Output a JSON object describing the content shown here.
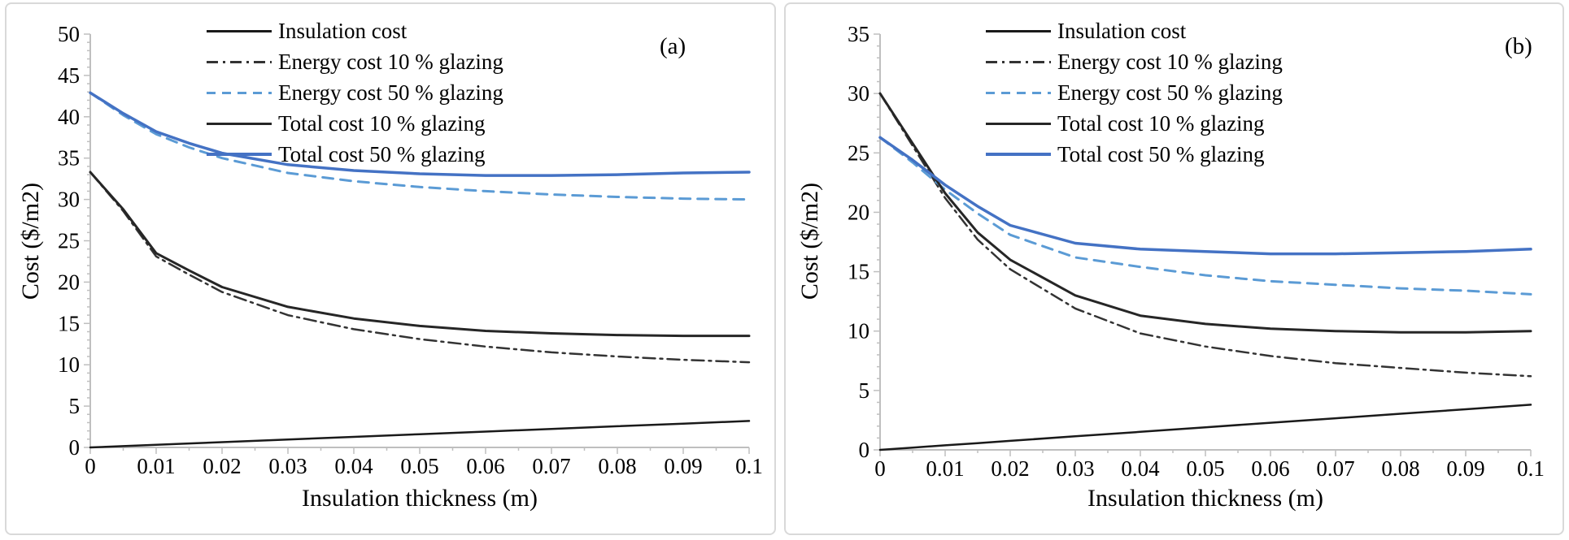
{
  "figure": {
    "background": "#ffffff",
    "panel_border_color": "#d9d9d9",
    "axis_color": "#bfbfbf",
    "accent_blue_solid": "#4472C4",
    "accent_blue_dashed": "#5B9BD5",
    "line_black": "#1a1a1a",
    "line_dark": "#262626",
    "line_dashdot_gray": "#333333"
  },
  "chart_data": [
    {
      "type": "line",
      "panel_label": "(a)",
      "xlabel": "Insulation thickness (m)",
      "ylabel": "Cost ($/m2)",
      "xlim": [
        0,
        0.1
      ],
      "ylim": [
        0,
        50
      ],
      "grid": false,
      "legend_position": "top-center",
      "x_tick_values": [
        0,
        0.01,
        0.02,
        0.03,
        0.04,
        0.05,
        0.06,
        0.07,
        0.08,
        0.09,
        0.1
      ],
      "x_tick_labels": [
        "0",
        "0.01",
        "0.02",
        "0.03",
        "0.04",
        "0.05",
        "0.06",
        "0.07",
        "0.08",
        "0.09",
        "0.1"
      ],
      "x_minor": 0.005,
      "y_tick_values": [
        0,
        5,
        10,
        15,
        20,
        25,
        30,
        35,
        40,
        45,
        50
      ],
      "y_tick_labels": [
        "0",
        "5",
        "10",
        "15",
        "20",
        "25",
        "30",
        "35",
        "40",
        "45",
        "50"
      ],
      "y_minor": 1,
      "x": [
        0,
        0.005,
        0.01,
        0.015,
        0.02,
        0.03,
        0.04,
        0.05,
        0.06,
        0.07,
        0.08,
        0.09,
        0.1
      ],
      "series": [
        {
          "name": "Insulation cost",
          "style": "solid",
          "color": "#1a1a1a",
          "width": 2.5,
          "values": [
            0,
            0.16,
            0.32,
            0.48,
            0.64,
            0.96,
            1.28,
            1.6,
            1.92,
            2.24,
            2.56,
            2.88,
            3.2
          ]
        },
        {
          "name": "Energy cost 10 % glazing",
          "style": "dashdot",
          "color": "#333333",
          "width": 2.5,
          "values": [
            33.3,
            28.6,
            23.1,
            20.9,
            18.8,
            16.0,
            14.3,
            13.1,
            12.2,
            11.5,
            11.0,
            10.6,
            10.3
          ]
        },
        {
          "name": "Energy cost 50 % glazing",
          "style": "dashed",
          "color": "#5B9BD5",
          "width": 3,
          "values": [
            42.9,
            40.2,
            37.9,
            36.3,
            35.0,
            33.2,
            32.2,
            31.5,
            31.0,
            30.6,
            30.3,
            30.1,
            30.0
          ]
        },
        {
          "name": "Total cost 10 % glazing",
          "style": "solid",
          "color": "#262626",
          "width": 3,
          "values": [
            33.3,
            28.8,
            23.5,
            21.4,
            19.4,
            17.0,
            15.6,
            14.7,
            14.1,
            13.8,
            13.6,
            13.5,
            13.5
          ]
        },
        {
          "name": "Total cost 50 % glazing",
          "style": "solid",
          "color": "#4472C4",
          "width": 3.5,
          "values": [
            42.9,
            40.4,
            38.2,
            36.8,
            35.6,
            34.2,
            33.5,
            33.1,
            32.9,
            32.9,
            33.0,
            33.2,
            33.3
          ]
        }
      ]
    },
    {
      "type": "line",
      "panel_label": "(b)",
      "xlabel": "Insulation thickness (m)",
      "ylabel": "Cost ($/m2)",
      "xlim": [
        0,
        0.1
      ],
      "ylim": [
        0,
        35
      ],
      "grid": false,
      "legend_position": "top-center",
      "x_tick_values": [
        0,
        0.01,
        0.02,
        0.03,
        0.04,
        0.05,
        0.06,
        0.07,
        0.08,
        0.09,
        0.1
      ],
      "x_tick_labels": [
        "0",
        "0.01",
        "0.02",
        "0.03",
        "0.04",
        "0.05",
        "0.06",
        "0.07",
        "0.08",
        "0.09",
        "0.1"
      ],
      "x_minor": 0.005,
      "y_tick_values": [
        0,
        5,
        10,
        15,
        20,
        25,
        30,
        35
      ],
      "y_tick_labels": [
        "0",
        "5",
        "10",
        "15",
        "20",
        "25",
        "30",
        "35"
      ],
      "y_minor": 1,
      "x": [
        0,
        0.005,
        0.01,
        0.015,
        0.02,
        0.03,
        0.04,
        0.05,
        0.06,
        0.07,
        0.08,
        0.09,
        0.1
      ],
      "series": [
        {
          "name": "Insulation cost",
          "style": "solid",
          "color": "#1a1a1a",
          "width": 2.5,
          "values": [
            0,
            0.19,
            0.38,
            0.57,
            0.76,
            1.14,
            1.52,
            1.9,
            2.28,
            2.66,
            3.04,
            3.42,
            3.8
          ]
        },
        {
          "name": "Energy cost 10 % glazing",
          "style": "dashdot",
          "color": "#333333",
          "width": 2.5,
          "values": [
            30.0,
            25.6,
            21.2,
            17.7,
            15.2,
            11.9,
            9.8,
            8.7,
            7.9,
            7.3,
            6.9,
            6.5,
            6.2
          ]
        },
        {
          "name": "Energy cost 50 % glazing",
          "style": "dashed",
          "color": "#5B9BD5",
          "width": 3,
          "values": [
            26.3,
            24.2,
            21.9,
            19.9,
            18.1,
            16.2,
            15.4,
            14.7,
            14.2,
            13.9,
            13.6,
            13.4,
            13.1
          ]
        },
        {
          "name": "Total cost 10 % glazing",
          "style": "solid",
          "color": "#262626",
          "width": 3,
          "values": [
            30.0,
            25.8,
            21.6,
            18.3,
            16.0,
            13.0,
            11.3,
            10.6,
            10.2,
            10.0,
            9.9,
            9.9,
            10.0
          ]
        },
        {
          "name": "Total cost 50 % glazing",
          "style": "solid",
          "color": "#4472C4",
          "width": 3.5,
          "values": [
            26.3,
            24.4,
            22.3,
            20.5,
            18.9,
            17.4,
            16.9,
            16.7,
            16.5,
            16.5,
            16.6,
            16.7,
            16.9
          ]
        }
      ]
    }
  ]
}
